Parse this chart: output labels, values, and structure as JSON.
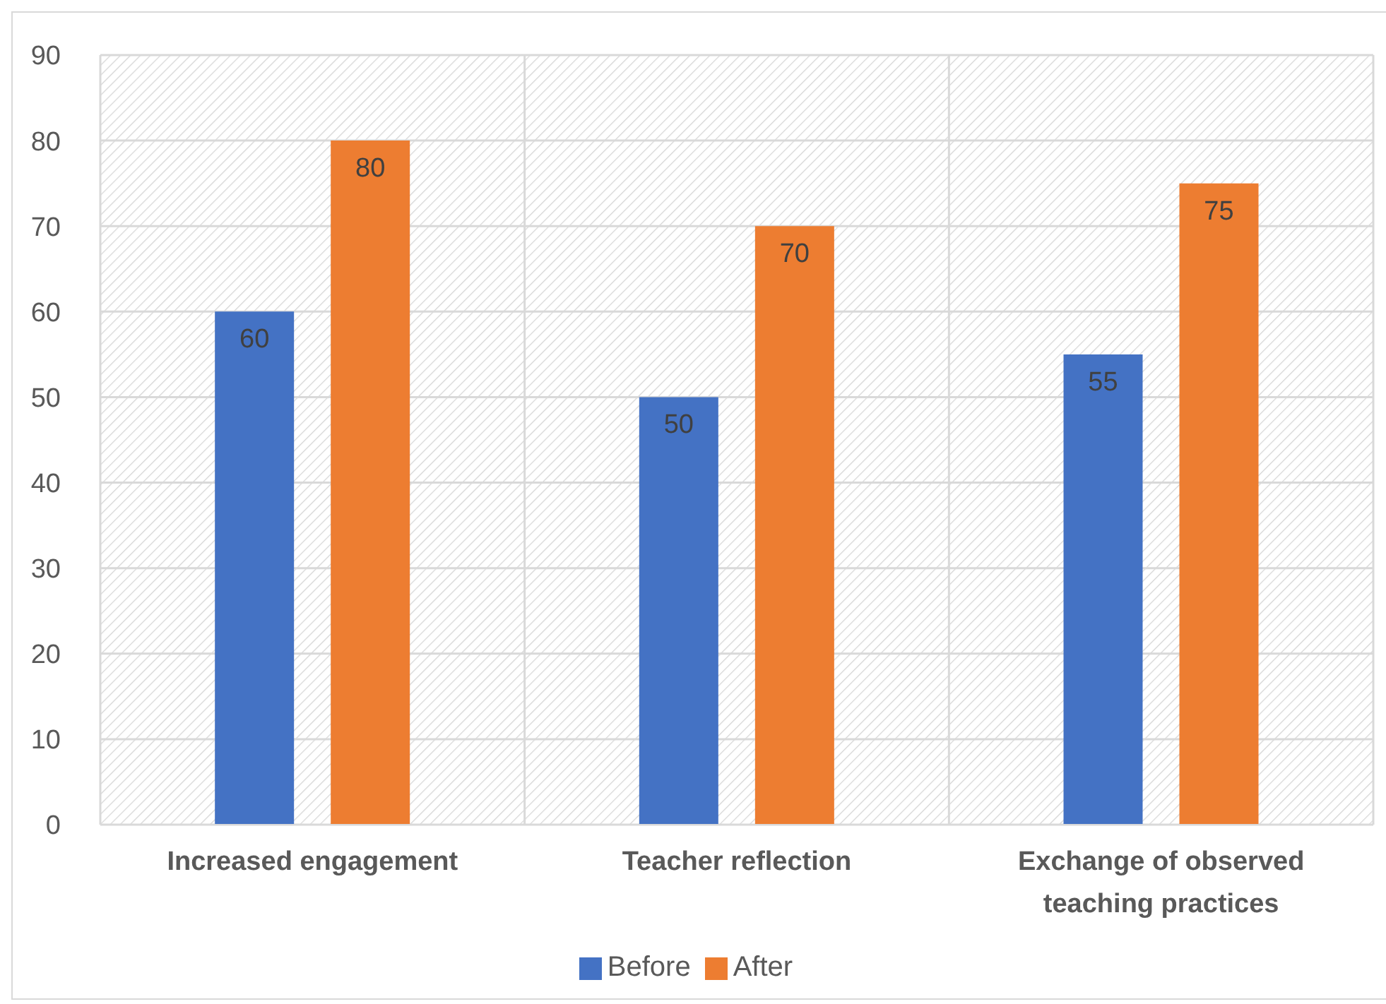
{
  "chart_data": {
    "type": "bar",
    "categories": [
      "Increased engagement",
      "Teacher reflection",
      "Exchange of observed teaching practices"
    ],
    "series": [
      {
        "name": "Before",
        "color": "#4472c4",
        "values": [
          60,
          50,
          55
        ]
      },
      {
        "name": "After",
        "color": "#ed7d31",
        "values": [
          80,
          70,
          75
        ]
      }
    ],
    "ylim": [
      0,
      90
    ],
    "yticks": [
      0,
      10,
      20,
      30,
      40,
      50,
      60,
      70,
      80,
      90
    ],
    "grid": true,
    "legend": "bottom",
    "data_labels": true
  }
}
